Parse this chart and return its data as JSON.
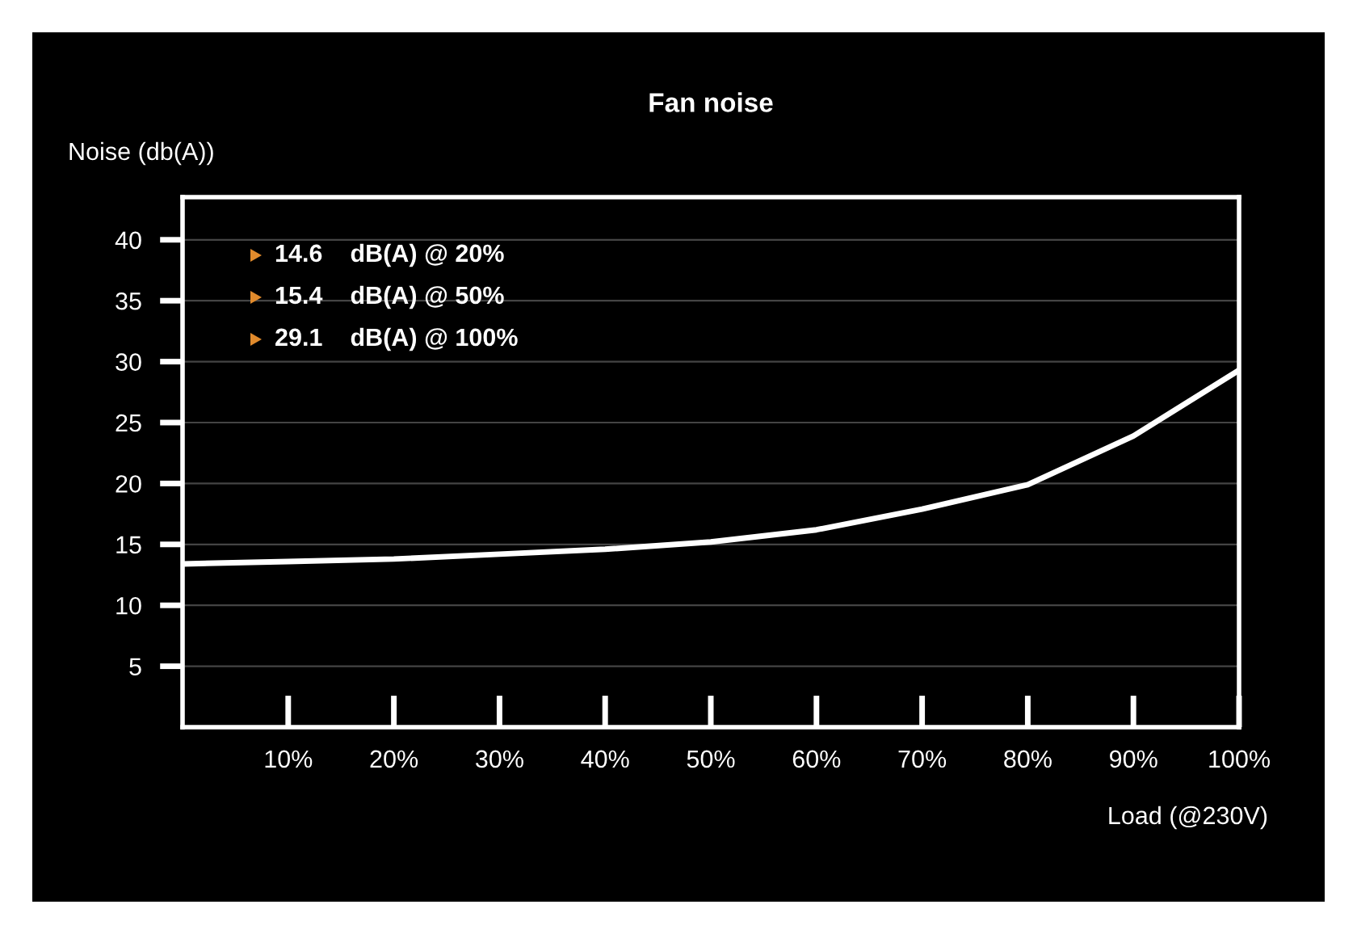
{
  "chart_data": {
    "type": "line",
    "title": "Fan noise",
    "ylabel": "Noise (db(A))",
    "xlabel": "Load (@230V)",
    "x": [
      0,
      10,
      20,
      30,
      40,
      50,
      60,
      70,
      80,
      90,
      100
    ],
    "series": [
      {
        "color": "#ffffff",
        "values": [
          13.4,
          13.6,
          13.8,
          14.2,
          14.6,
          15.2,
          16.2,
          17.9,
          19.9,
          23.9,
          29.3
        ]
      }
    ],
    "xlim": [
      0,
      100
    ],
    "xticks": [
      {
        "value": 10,
        "label": "10%"
      },
      {
        "value": 20,
        "label": "20%"
      },
      {
        "value": 30,
        "label": "30%"
      },
      {
        "value": 40,
        "label": "40%"
      },
      {
        "value": 50,
        "label": "50%"
      },
      {
        "value": 60,
        "label": "60%"
      },
      {
        "value": 70,
        "label": "70%"
      },
      {
        "value": 80,
        "label": "80%"
      },
      {
        "value": 90,
        "label": "90%"
      },
      {
        "value": 100,
        "label": "100%"
      }
    ],
    "ylim": [
      0,
      43.5
    ],
    "yticks": [
      5,
      10,
      15,
      20,
      25,
      30,
      35,
      40
    ],
    "grid": "y",
    "marker": "none",
    "line_style": "solid",
    "annotations": [
      "14.6    dB(A) @ 20%",
      "15.4    dB(A) @ 50%",
      "29.1    dB(A) @ 100%"
    ]
  }
}
